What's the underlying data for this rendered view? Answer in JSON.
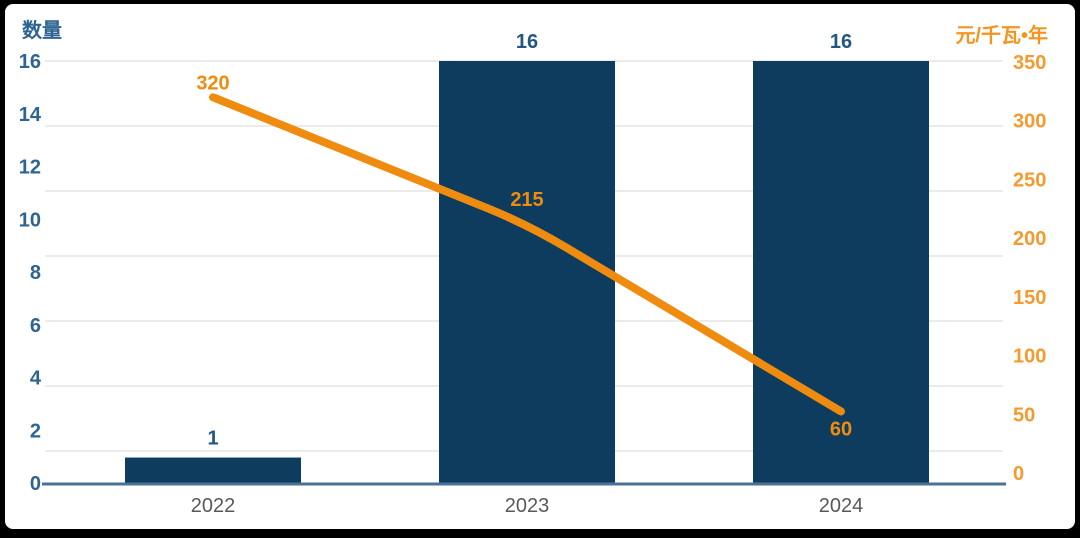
{
  "window": {
    "background_color": "#000000",
    "card_color": "#ffffff"
  },
  "chart_data": {
    "type": "combo",
    "categories": [
      "2022",
      "2023",
      "2024"
    ],
    "series": [
      {
        "type": "bar",
        "axis": "left",
        "values": [
          1,
          16,
          16
        ],
        "data_labels": [
          "1",
          "16",
          "16"
        ],
        "color": "#0d3c5e",
        "label_color": "#245685"
      },
      {
        "type": "line",
        "axis": "right",
        "values": [
          320,
          215,
          60
        ],
        "data_labels": [
          "320",
          "215",
          "60"
        ],
        "color": "#ef8b0e",
        "label_color": "#ef8b0e"
      }
    ],
    "left_axis": {
      "title": "数量",
      "min": 0,
      "max": 16,
      "step": 2,
      "tick_labels": [
        "16",
        "14",
        "12",
        "10",
        "8",
        "6",
        "4",
        "2",
        "0"
      ],
      "label_color": "#2d6491",
      "title_color": "#2d6491"
    },
    "right_axis": {
      "title": "元/千瓦•年",
      "min": 0,
      "max": 350,
      "step": 50,
      "tick_labels": [
        "350",
        "300",
        "250",
        "200",
        "150",
        "100",
        "50",
        "0"
      ],
      "label_color": "#f49a2e",
      "title_color": "#f5941e"
    },
    "x_axis": {
      "labels": [
        "2022",
        "2023",
        "2024"
      ],
      "label_color": "#595959",
      "axis_line_color": "#4a7294"
    },
    "grid": {
      "show": true,
      "color": "#ebebeb"
    },
    "legend": {
      "show": false
    }
  }
}
